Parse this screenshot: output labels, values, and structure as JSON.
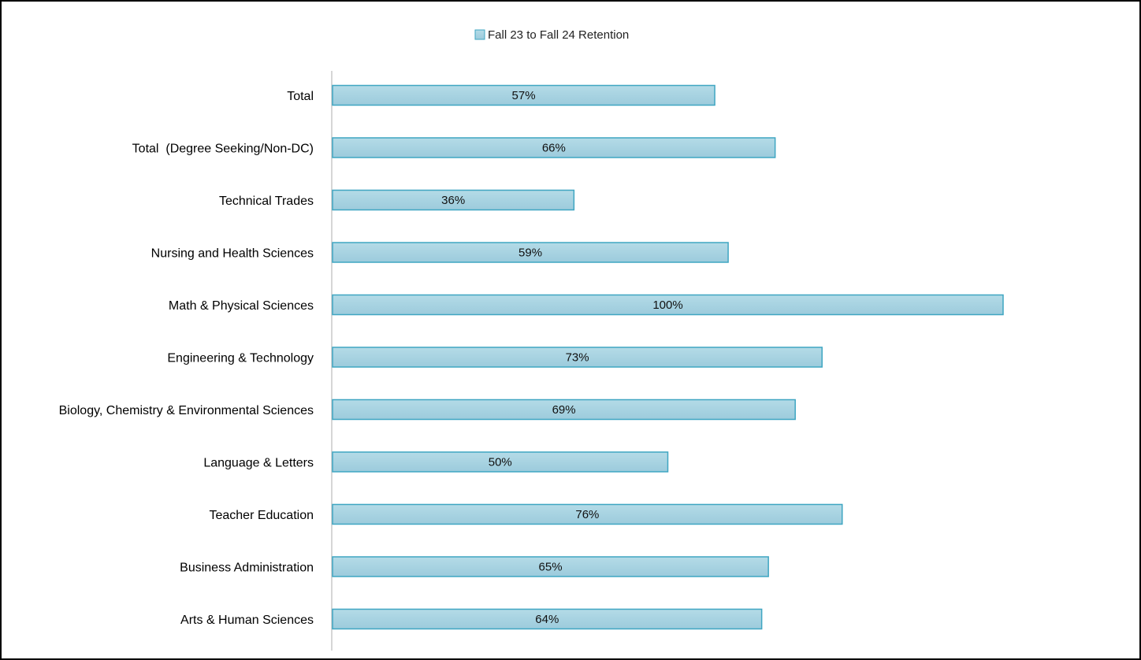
{
  "colors": {
    "bar_fill_top": "#b4dbe7",
    "bar_fill_bottom": "#9ccbdc",
    "bar_stroke": "#3fa6c2",
    "axis": "#c8c8c8"
  },
  "chart_data": {
    "type": "bar",
    "orientation": "horizontal",
    "categories": [
      "Total",
      "Total  (Degree Seeking/Non-DC)",
      "Technical Trades",
      "Nursing and Health Sciences",
      "Math & Physical Sciences",
      "Engineering & Technology",
      "Biology, Chemistry & Environmental Sciences",
      "Language & Letters",
      "Teacher Education",
      "Business Administration",
      "Arts & Human Sciences"
    ],
    "series": [
      {
        "name": "Fall 23 to Fall 24 Retention",
        "values": [
          57,
          66,
          36,
          59,
          100,
          73,
          69,
          50,
          76,
          65,
          64
        ],
        "labels": [
          "57%",
          "66%",
          "36%",
          "59%",
          "100%",
          "73%",
          "69%",
          "50%",
          "76%",
          "65%",
          "64%"
        ]
      }
    ],
    "xlim": [
      0,
      100
    ],
    "grid": false,
    "legend_position": "top-center"
  }
}
